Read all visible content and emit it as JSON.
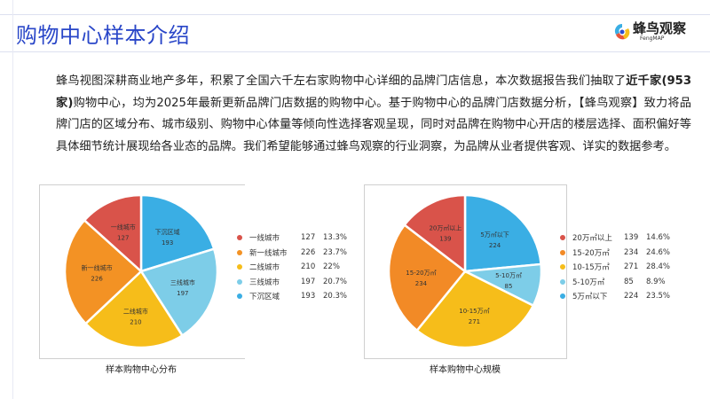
{
  "header": {
    "title": "购物中心样本介绍",
    "logo_name": "蜂鸟观察",
    "logo_sub": "FengMAP"
  },
  "intro": {
    "p1": "蜂鸟视图深耕商业地产多年，积累了全国六千左右家购物中心详细的品牌门店信息，本次数据报告我们抽取了",
    "bold1": "近千家(953家)",
    "p2": "购物中心，均为2025年最新更新品牌门店数据的购物中心。基于购物中心的品牌门店数据分析，【蜂鸟观察】致力将品牌门店的区域分布、城市级别、购物中心体量等倾向性选择客观呈现，同时对品牌在购物中心开店的楼层选择、面积偏好等具体细节统计展现给各业态的品牌。我们希望能够通过蜂鸟观察的行业洞察，为品牌从业者提供客观、详实的数据参考。"
  },
  "chart_data": [
    {
      "type": "pie",
      "title": "样本购物中心分布",
      "legend": "right",
      "categories": [
        "一线城市",
        "新一线城市",
        "二线城市",
        "三线城市",
        "下沉区域"
      ],
      "values": [
        127,
        226,
        210,
        197,
        193
      ],
      "percents": [
        "13.3%",
        "23.7%",
        "22%",
        "20.7%",
        "20.3%"
      ],
      "colors": [
        "#d9534a",
        "#f39224",
        "#f6bd1a",
        "#7dcde8",
        "#3aaee4"
      ]
    },
    {
      "type": "pie",
      "title": "样本购物中心规模",
      "legend": "right",
      "categories": [
        "20万㎡以上",
        "15-20万㎡",
        "10-15万㎡",
        "5-10万㎡",
        "5万㎡以下"
      ],
      "values": [
        139,
        234,
        271,
        85,
        224
      ],
      "percents": [
        "14.6%",
        "24.6%",
        "28.4%",
        "8.9%",
        "23.5%"
      ],
      "colors": [
        "#d9534a",
        "#f28a26",
        "#f6bd1a",
        "#7dcde8",
        "#3aaee4"
      ]
    }
  ]
}
